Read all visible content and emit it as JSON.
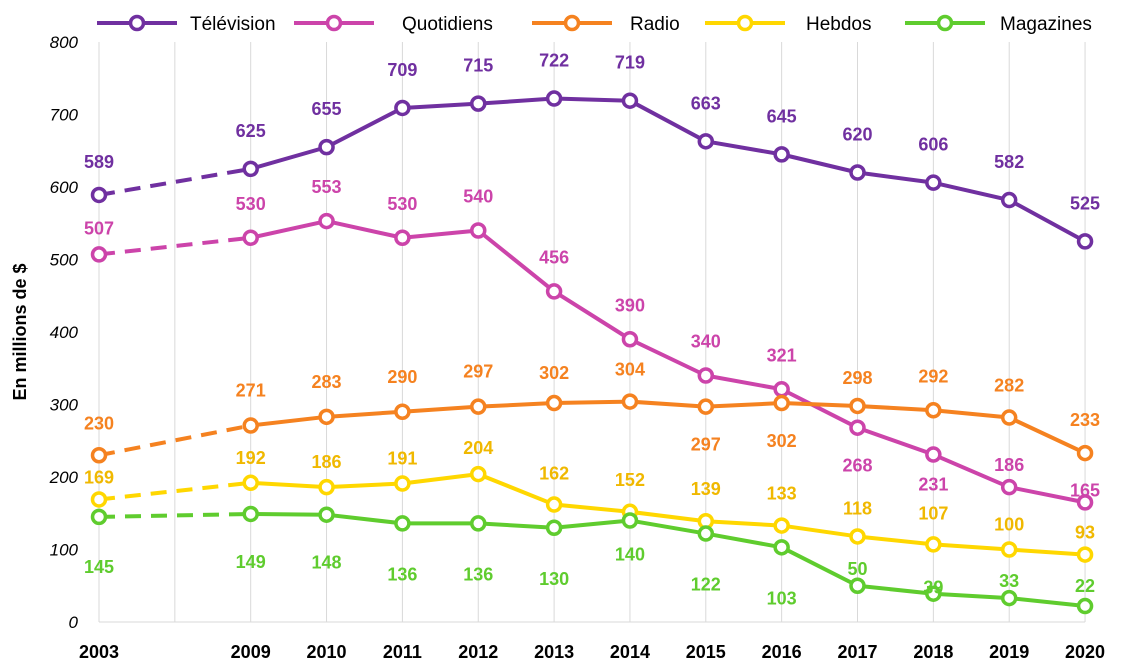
{
  "chart_data": {
    "type": "line",
    "ylabel": "En millions de $",
    "ylim": [
      0,
      800
    ],
    "yticks": [
      0,
      100,
      200,
      300,
      400,
      500,
      600,
      700,
      800
    ],
    "grid": "vertical",
    "legend_position": "top",
    "categories": [
      "2003",
      "",
      "2009",
      "2010",
      "2011",
      "2012",
      "2013",
      "2014",
      "2015",
      "2016",
      "2017",
      "2018",
      "2019",
      "2020"
    ],
    "series": [
      {
        "name": "Télévision",
        "color": "#7030A0",
        "values": [
          589,
          null,
          625,
          655,
          709,
          715,
          722,
          719,
          663,
          645,
          620,
          606,
          582,
          525
        ]
      },
      {
        "name": "Quotidiens",
        "color": "#CC44AA",
        "values": [
          507,
          null,
          530,
          553,
          530,
          540,
          456,
          390,
          340,
          321,
          268,
          231,
          186,
          165
        ]
      },
      {
        "name": "Radio",
        "color": "#F58220",
        "values": [
          230,
          null,
          271,
          283,
          290,
          297,
          302,
          304,
          297,
          302,
          298,
          292,
          282,
          233
        ]
      },
      {
        "name": "Hebdos",
        "color": "#FFD700",
        "values": [
          169,
          null,
          192,
          186,
          191,
          204,
          162,
          152,
          139,
          133,
          118,
          107,
          100,
          93
        ]
      },
      {
        "name": "Magazines",
        "color": "#5FCC2E",
        "values": [
          145,
          null,
          149,
          148,
          136,
          136,
          130,
          140,
          122,
          103,
          50,
          39,
          33,
          22
        ]
      }
    ]
  }
}
